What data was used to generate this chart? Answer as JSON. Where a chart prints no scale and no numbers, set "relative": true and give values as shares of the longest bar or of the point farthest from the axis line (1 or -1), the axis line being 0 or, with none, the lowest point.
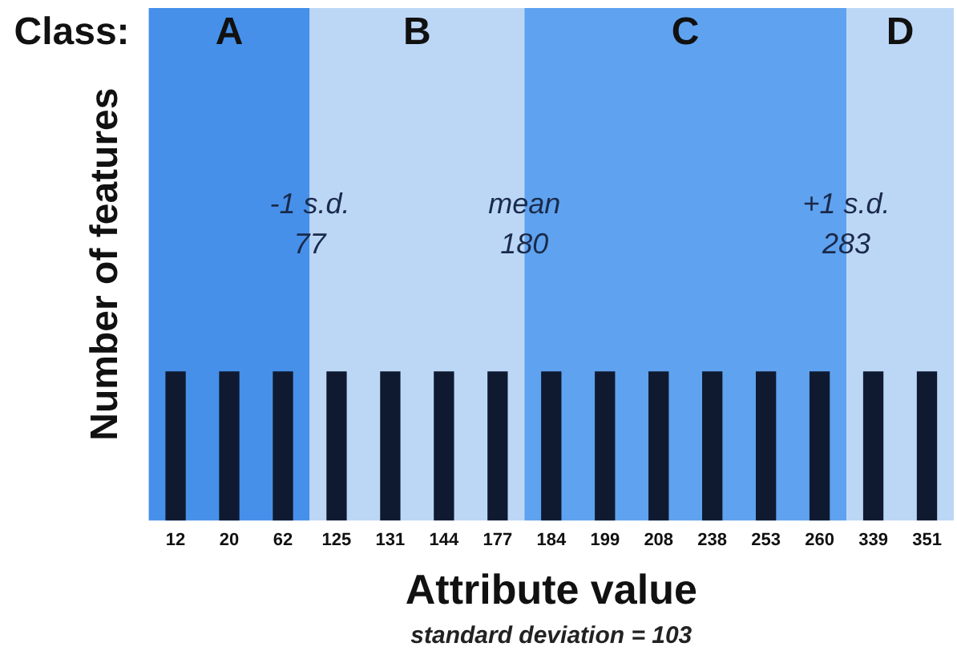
{
  "chart_data": {
    "type": "bar",
    "relative": true,
    "categories": [
      "12",
      "20",
      "62",
      "125",
      "131",
      "144",
      "177",
      "184",
      "199",
      "208",
      "238",
      "253",
      "260",
      "339",
      "351"
    ],
    "values": [
      1,
      1,
      1,
      1,
      1,
      1,
      1,
      1,
      1,
      1,
      1,
      1,
      1,
      1,
      1
    ],
    "color": "#0f1a30",
    "xlabel": "Attribute value",
    "ylabel": "Number of features",
    "bands": [
      {
        "axis": "x",
        "from": "12",
        "to": "62",
        "label": "A",
        "color": "#4690ea"
      },
      {
        "axis": "x",
        "from": "125",
        "to": "177",
        "label": "B",
        "color": "#bcd7f6"
      },
      {
        "axis": "x",
        "from": "184",
        "to": "260",
        "label": "C",
        "color": "#5fa2ef"
      },
      {
        "axis": "x",
        "from": "339",
        "to": "351",
        "label": "D",
        "color": "#bcd7f6"
      }
    ],
    "annotations": [
      "Class:",
      "-1 s.d.\n77",
      "mean\n180",
      "+1 s.d.\n283",
      "standard deviation = 103"
    ],
    "grid": false,
    "legend": false
  }
}
